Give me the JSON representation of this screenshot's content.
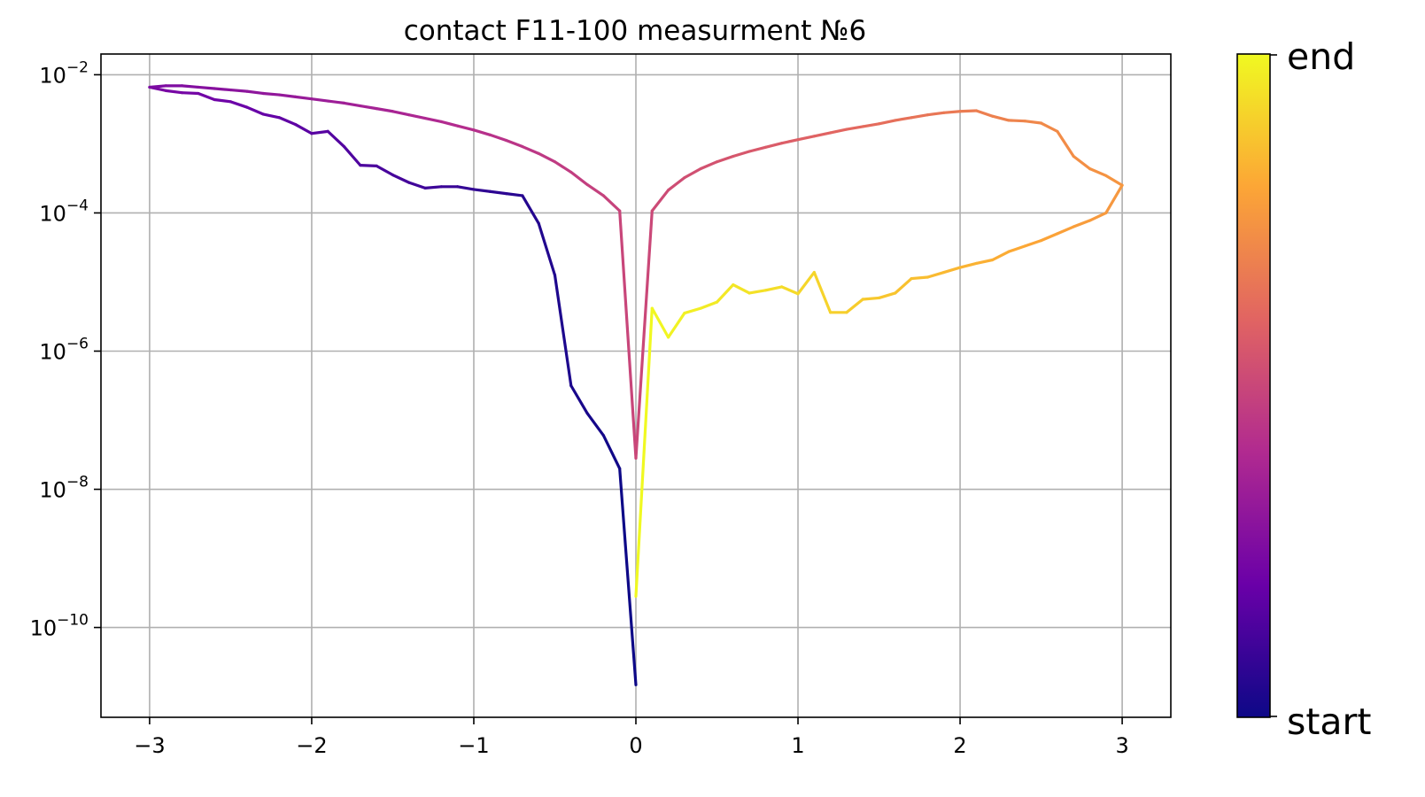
{
  "chart_data": {
    "type": "line",
    "title": "contact F11-100 measurment №6",
    "xlabel": "",
    "ylabel": "",
    "xlim": [
      -3.3,
      3.3
    ],
    "ylim_log10": [
      -11.3,
      -1.7
    ],
    "yscale": "log",
    "grid": true,
    "x_ticks": [
      {
        "value": -3,
        "label": "−3"
      },
      {
        "value": -2,
        "label": "−2"
      },
      {
        "value": -1,
        "label": "−1"
      },
      {
        "value": 0,
        "label": "0"
      },
      {
        "value": 1,
        "label": "1"
      },
      {
        "value": 2,
        "label": "2"
      },
      {
        "value": 3,
        "label": "3"
      }
    ],
    "y_ticks": [
      {
        "exp": -2,
        "base": "10",
        "sup": "−2"
      },
      {
        "exp": -4,
        "base": "10",
        "sup": "−4"
      },
      {
        "exp": -6,
        "base": "10",
        "sup": "−6"
      },
      {
        "exp": -8,
        "base": "10",
        "sup": "−8"
      },
      {
        "exp": -10,
        "base": "10",
        "sup": "−10"
      }
    ],
    "colormap": "plasma",
    "colormap_stops": [
      "#0d0887",
      "#6a00a8",
      "#b12a90",
      "#e16462",
      "#fca636",
      "#f0f921"
    ],
    "colorbar": {
      "top_label": "end",
      "bottom_label": "start"
    },
    "series": [
      {
        "x": [
          0.0,
          -0.1,
          -0.2,
          -0.3,
          -0.4,
          -0.5,
          -0.6,
          -0.7,
          -0.8,
          -0.9,
          -1.0,
          -1.1,
          -1.2,
          -1.3,
          -1.4,
          -1.5,
          -1.6,
          -1.7,
          -1.8,
          -1.9,
          -2.0,
          -2.1,
          -2.2,
          -2.3,
          -2.4,
          -2.5,
          -2.6,
          -2.7,
          -2.8,
          -2.9,
          -3.0,
          -2.9,
          -2.8,
          -2.7,
          -2.6,
          -2.5,
          -2.4,
          -2.3,
          -2.2,
          -2.1,
          -2.0,
          -1.9,
          -1.8,
          -1.7,
          -1.6,
          -1.5,
          -1.4,
          -1.3,
          -1.2,
          -1.1,
          -1.0,
          -0.9,
          -0.8,
          -0.7,
          -0.6,
          -0.5,
          -0.4,
          -0.3,
          -0.2,
          -0.1,
          0.0,
          0.1,
          0.2,
          0.3,
          0.4,
          0.5,
          0.6,
          0.7,
          0.8,
          0.9,
          1.0,
          1.1,
          1.2,
          1.3,
          1.4,
          1.5,
          1.6,
          1.7,
          1.8,
          1.9,
          2.0,
          2.1,
          2.2,
          2.3,
          2.4,
          2.5,
          2.6,
          2.7,
          2.8,
          2.9,
          3.0,
          2.9,
          2.8,
          2.7,
          2.6,
          2.5,
          2.4,
          2.3,
          2.2,
          2.1,
          2.0,
          1.9,
          1.8,
          1.7,
          1.6,
          1.5,
          1.4,
          1.3,
          1.2,
          1.1,
          1.0,
          0.9,
          0.8,
          0.7,
          0.6,
          0.5,
          0.4,
          0.3,
          0.2,
          0.1,
          0.0
        ],
        "log10_y": [
          -10.83,
          -7.7,
          -7.22,
          -6.9,
          -6.5,
          -4.9,
          -4.15,
          -3.75,
          -3.72,
          -3.69,
          -3.66,
          -3.62,
          -3.62,
          -3.64,
          -3.56,
          -3.45,
          -3.32,
          -3.31,
          -3.04,
          -2.82,
          -2.85,
          -2.72,
          -2.62,
          -2.57,
          -2.47,
          -2.39,
          -2.36,
          -2.27,
          -2.26,
          -2.23,
          -2.18,
          -2.16,
          -2.16,
          -2.18,
          -2.2,
          -2.22,
          -2.24,
          -2.27,
          -2.29,
          -2.32,
          -2.35,
          -2.38,
          -2.41,
          -2.45,
          -2.49,
          -2.53,
          -2.58,
          -2.63,
          -2.68,
          -2.74,
          -2.8,
          -2.87,
          -2.95,
          -3.04,
          -3.14,
          -3.26,
          -3.41,
          -3.59,
          -3.75,
          -3.97,
          -7.55,
          -3.97,
          -3.67,
          -3.49,
          -3.36,
          -3.26,
          -3.18,
          -3.11,
          -3.05,
          -2.99,
          -2.94,
          -2.89,
          -2.84,
          -2.79,
          -2.75,
          -2.71,
          -2.66,
          -2.62,
          -2.58,
          -2.55,
          -2.53,
          -2.52,
          -2.6,
          -2.66,
          -2.67,
          -2.7,
          -2.82,
          -3.18,
          -3.36,
          -3.46,
          -3.6,
          -4.0,
          -4.11,
          -4.2,
          -4.3,
          -4.4,
          -4.48,
          -4.56,
          -4.68,
          -4.73,
          -4.79,
          -4.86,
          -4.93,
          -4.95,
          -5.16,
          -5.23,
          -5.25,
          -5.44,
          -5.44,
          -4.86,
          -5.17,
          -5.07,
          -5.12,
          -5.16,
          -5.04,
          -5.29,
          -5.38,
          -5.45,
          -5.8,
          -5.38,
          -9.55
        ]
      }
    ]
  }
}
